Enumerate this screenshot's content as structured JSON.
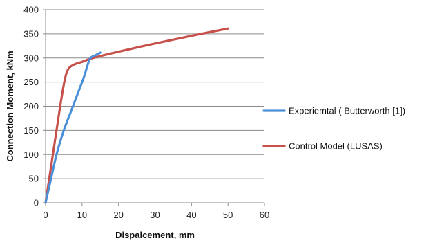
{
  "chart_data": {
    "type": "line",
    "title": "",
    "xlabel": "Dispalcement, mm",
    "ylabel": "Connection Moment, kNm",
    "xlim": [
      0,
      60
    ],
    "ylim": [
      0,
      400
    ],
    "xticks": [
      0,
      10,
      20,
      30,
      40,
      50,
      60
    ],
    "yticks": [
      0,
      50,
      100,
      150,
      200,
      250,
      300,
      350,
      400
    ],
    "grid": "horizontal",
    "legend_position": "right",
    "series": [
      {
        "name": "Experiemtal ( Butterworth [1])",
        "color": "#4a90d9",
        "x": [
          0,
          1.5,
          3,
          5,
          7,
          9,
          10.5,
          11.5,
          12.3,
          13.5,
          15
        ],
        "y": [
          0,
          50,
          100,
          150,
          190,
          230,
          260,
          285,
          300,
          305,
          311
        ]
      },
      {
        "name": "Control Model (LUSAS)",
        "color": "#c8504b",
        "x": [
          0,
          1,
          2,
          3,
          4,
          5,
          5.7,
          6.5,
          8,
          10,
          13,
          20,
          30,
          40,
          50
        ],
        "y": [
          0,
          50,
          100,
          150,
          200,
          245,
          268,
          280,
          287,
          292,
          300,
          313,
          330,
          346,
          361
        ]
      }
    ]
  }
}
